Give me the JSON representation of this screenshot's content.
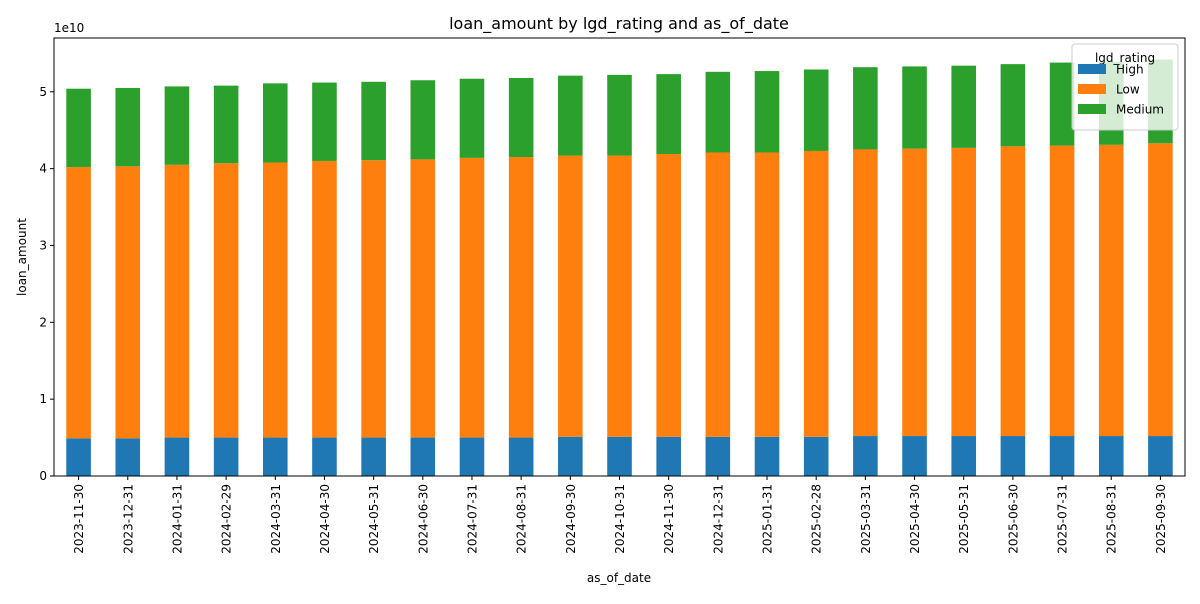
{
  "chart_data": {
    "type": "bar",
    "stacked": true,
    "title": "loan_amount by lgd_rating and as_of_date",
    "xlabel": "as_of_date",
    "ylabel": "loan_amount",
    "y_offset_label": "1e10",
    "y_scale": 10000000000,
    "ylim": [
      0,
      5.7
    ],
    "yticks": [
      "0",
      "1",
      "2",
      "3",
      "4",
      "5"
    ],
    "grid": false,
    "legend": {
      "title": "lgd_rating",
      "placement": "top-right"
    },
    "categories": [
      "2023-11-30",
      "2023-12-31",
      "2024-01-31",
      "2024-02-29",
      "2024-03-31",
      "2024-04-30",
      "2024-05-31",
      "2024-06-30",
      "2024-07-31",
      "2024-08-31",
      "2024-09-30",
      "2024-10-31",
      "2024-11-30",
      "2024-12-31",
      "2025-01-31",
      "2025-02-28",
      "2025-03-31",
      "2025-04-30",
      "2025-05-31",
      "2025-06-30",
      "2025-07-31",
      "2025-08-31",
      "2025-09-30"
    ],
    "series": [
      {
        "name": "High",
        "color": "#1f77b4",
        "values": [
          0.49,
          0.49,
          0.5,
          0.5,
          0.5,
          0.5,
          0.5,
          0.5,
          0.5,
          0.5,
          0.51,
          0.51,
          0.51,
          0.51,
          0.51,
          0.51,
          0.52,
          0.52,
          0.52,
          0.52,
          0.52,
          0.52,
          0.52
        ]
      },
      {
        "name": "Low",
        "color": "#ff7f0e",
        "values": [
          3.53,
          3.54,
          3.55,
          3.57,
          3.58,
          3.6,
          3.61,
          3.62,
          3.64,
          3.65,
          3.66,
          3.66,
          3.68,
          3.7,
          3.7,
          3.72,
          3.73,
          3.74,
          3.75,
          3.77,
          3.78,
          3.79,
          3.81
        ]
      },
      {
        "name": "Medium",
        "color": "#2ca02c",
        "values": [
          1.02,
          1.02,
          1.02,
          1.01,
          1.03,
          1.02,
          1.02,
          1.03,
          1.03,
          1.03,
          1.04,
          1.05,
          1.04,
          1.05,
          1.06,
          1.06,
          1.07,
          1.07,
          1.07,
          1.07,
          1.08,
          1.08,
          1.09
        ]
      }
    ]
  }
}
